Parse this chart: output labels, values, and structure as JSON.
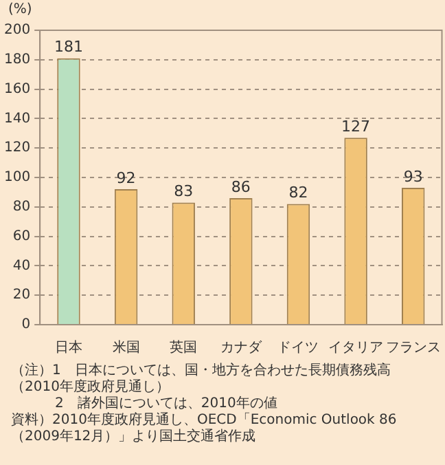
{
  "chart_data": {
    "type": "bar",
    "ylabel": "(%)",
    "categories": [
      "日本",
      "米国",
      "英国",
      "カナダ",
      "ドイツ",
      "イタリア",
      "フランス"
    ],
    "values": [
      181,
      92,
      83,
      86,
      82,
      127,
      93
    ],
    "colors": [
      "#b8e0c0",
      "#f2c478",
      "#f2c478",
      "#f2c478",
      "#f2c478",
      "#f2c478",
      "#f2c478"
    ],
    "ylim": [
      0,
      200
    ],
    "yticks": [
      0,
      20,
      40,
      60,
      80,
      100,
      120,
      140,
      160,
      180,
      200
    ],
    "grid": "y",
    "data_labels": true,
    "annotations": [
      "（注）1　日本については、国・地方を合わせた長期債務残高（2010年度政府見通し）",
      "2　諸外国については、2010年の値",
      "資料）2010年度政府見通し、OECD「Economic Outlook 86（2009年12月）」より国土交通省作成"
    ]
  }
}
